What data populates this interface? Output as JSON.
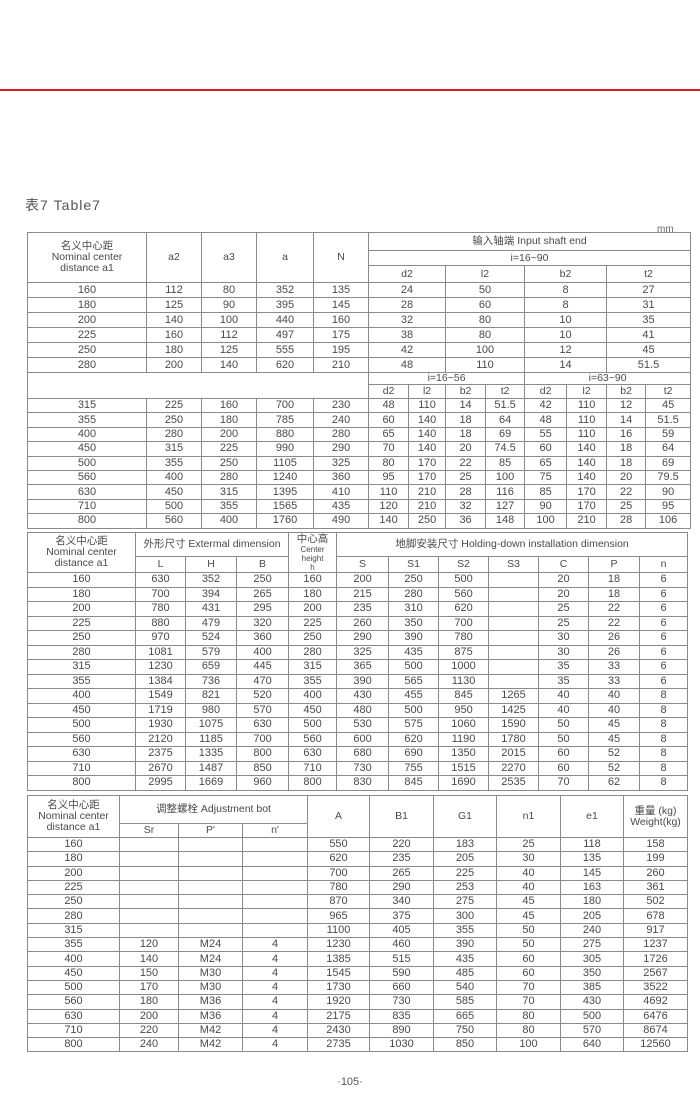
{
  "title": "表7  Table7",
  "unit": "mm",
  "page_number": "·105·",
  "accent_color": "#d8201e",
  "table1": {
    "header": {
      "a1": "名义中心距\nNominal center\ndistance a1",
      "a2": "a2",
      "a3": "a3",
      "a": "a",
      "N": "N",
      "input_shaft_end": "输入轴端  Input shaft end",
      "ratio_top": "i=16~90",
      "cols": [
        "d2",
        "l2",
        "b2",
        "t2"
      ],
      "ratio_low_1": "i=16~56",
      "ratio_low_2": "i=63~90",
      "cols_low": [
        "d2",
        "l2",
        "b2",
        "t2",
        "d2",
        "l2",
        "b2",
        "t2"
      ]
    },
    "rows_top": [
      [
        "160",
        "112",
        "80",
        "352",
        "135",
        "24",
        "50",
        "8",
        "27"
      ],
      [
        "180",
        "125",
        "90",
        "395",
        "145",
        "28",
        "60",
        "8",
        "31"
      ],
      [
        "200",
        "140",
        "100",
        "440",
        "160",
        "32",
        "80",
        "10",
        "35"
      ],
      [
        "225",
        "160",
        "112",
        "497",
        "175",
        "38",
        "80",
        "10",
        "41"
      ],
      [
        "250",
        "180",
        "125",
        "555",
        "195",
        "42",
        "100",
        "12",
        "45"
      ],
      [
        "280",
        "200",
        "140",
        "620",
        "210",
        "48",
        "110",
        "14",
        "51.5"
      ]
    ],
    "rows_low": [
      [
        "315",
        "225",
        "160",
        "700",
        "230",
        "48",
        "110",
        "14",
        "51.5",
        "42",
        "110",
        "12",
        "45"
      ],
      [
        "355",
        "250",
        "180",
        "785",
        "240",
        "60",
        "140",
        "18",
        "64",
        "48",
        "110",
        "14",
        "51.5"
      ],
      [
        "400",
        "280",
        "200",
        "880",
        "280",
        "65",
        "140",
        "18",
        "69",
        "55",
        "110",
        "16",
        "59"
      ],
      [
        "450",
        "315",
        "225",
        "990",
        "290",
        "70",
        "140",
        "20",
        "74.5",
        "60",
        "140",
        "18",
        "64"
      ],
      [
        "500",
        "355",
        "250",
        "1105",
        "325",
        "80",
        "170",
        "22",
        "85",
        "65",
        "140",
        "18",
        "69"
      ],
      [
        "560",
        "400",
        "280",
        "1240",
        "360",
        "95",
        "170",
        "25",
        "100",
        "75",
        "140",
        "20",
        "79.5"
      ],
      [
        "630",
        "450",
        "315",
        "1395",
        "410",
        "110",
        "210",
        "28",
        "116",
        "85",
        "170",
        "22",
        "90"
      ],
      [
        "710",
        "500",
        "355",
        "1565",
        "435",
        "120",
        "210",
        "32",
        "127",
        "90",
        "170",
        "25",
        "95"
      ],
      [
        "800",
        "560",
        "400",
        "1760",
        "490",
        "140",
        "250",
        "36",
        "148",
        "100",
        "210",
        "28",
        "106"
      ]
    ]
  },
  "table2": {
    "header": {
      "a1": "名义中心距\nNominal center\ndistance a1",
      "external": "外形尺寸 Extermal dimension",
      "center_height": "中心高",
      "center_height_en": "Center height\nh",
      "holding": "地脚安装尺寸  Holding-down installation dimension",
      "cols": [
        "L",
        "H",
        "B",
        "S",
        "S1",
        "S2",
        "S3",
        "C",
        "P",
        "n"
      ]
    },
    "rows": [
      [
        "160",
        "630",
        "352",
        "250",
        "160",
        "200",
        "250",
        "500",
        "",
        "20",
        "18",
        "6"
      ],
      [
        "180",
        "700",
        "394",
        "265",
        "180",
        "215",
        "280",
        "560",
        "",
        "20",
        "18",
        "6"
      ],
      [
        "200",
        "780",
        "431",
        "295",
        "200",
        "235",
        "310",
        "620",
        "",
        "25",
        "22",
        "6"
      ],
      [
        "225",
        "880",
        "479",
        "320",
        "225",
        "260",
        "350",
        "700",
        "",
        "25",
        "22",
        "6"
      ],
      [
        "250",
        "970",
        "524",
        "360",
        "250",
        "290",
        "390",
        "780",
        "",
        "30",
        "26",
        "6"
      ],
      [
        "280",
        "1081",
        "579",
        "400",
        "280",
        "325",
        "435",
        "875",
        "",
        "30",
        "26",
        "6"
      ],
      [
        "315",
        "1230",
        "659",
        "445",
        "315",
        "365",
        "500",
        "1000",
        "",
        "35",
        "33",
        "6"
      ],
      [
        "355",
        "1384",
        "736",
        "470",
        "355",
        "390",
        "565",
        "1130",
        "",
        "35",
        "33",
        "6"
      ],
      [
        "400",
        "1549",
        "821",
        "520",
        "400",
        "430",
        "455",
        "845",
        "1265",
        "40",
        "40",
        "8"
      ],
      [
        "450",
        "1719",
        "980",
        "570",
        "450",
        "480",
        "500",
        "950",
        "1425",
        "40",
        "40",
        "8"
      ],
      [
        "500",
        "1930",
        "1075",
        "630",
        "500",
        "530",
        "575",
        "1060",
        "1590",
        "50",
        "45",
        "8"
      ],
      [
        "560",
        "2120",
        "1185",
        "700",
        "560",
        "600",
        "620",
        "1190",
        "1780",
        "50",
        "45",
        "8"
      ],
      [
        "630",
        "2375",
        "1335",
        "800",
        "630",
        "680",
        "690",
        "1350",
        "2015",
        "60",
        "52",
        "8"
      ],
      [
        "710",
        "2670",
        "1487",
        "850",
        "710",
        "730",
        "755",
        "1515",
        "2270",
        "60",
        "52",
        "8"
      ],
      [
        "800",
        "2995",
        "1669",
        "960",
        "800",
        "830",
        "845",
        "1690",
        "2535",
        "70",
        "62",
        "8"
      ]
    ]
  },
  "table3": {
    "header": {
      "a1": "名义中心距\nNominal center\ndistance a1",
      "adjustment": "调整螺栓  Adjustment bot",
      "sub": [
        "Sr",
        "P'",
        "n'"
      ],
      "A": "A",
      "B1": "B1",
      "G1": "G1",
      "n1": "n1",
      "e1": "e1",
      "weight": "重量 (kg)\nWeight(kg)"
    },
    "rows": [
      [
        "160",
        "",
        "",
        "",
        "550",
        "220",
        "183",
        "25",
        "118",
        "158"
      ],
      [
        "180",
        "",
        "",
        "",
        "620",
        "235",
        "205",
        "30",
        "135",
        "199"
      ],
      [
        "200",
        "",
        "",
        "",
        "700",
        "265",
        "225",
        "40",
        "145",
        "260"
      ],
      [
        "225",
        "",
        "",
        "",
        "780",
        "290",
        "253",
        "40",
        "163",
        "361"
      ],
      [
        "250",
        "",
        "",
        "",
        "870",
        "340",
        "275",
        "45",
        "180",
        "502"
      ],
      [
        "280",
        "",
        "",
        "",
        "965",
        "375",
        "300",
        "45",
        "205",
        "678"
      ],
      [
        "315",
        "",
        "",
        "",
        "1100",
        "405",
        "355",
        "50",
        "240",
        "917"
      ],
      [
        "355",
        "120",
        "M24",
        "4",
        "1230",
        "460",
        "390",
        "50",
        "275",
        "1237"
      ],
      [
        "400",
        "140",
        "M24",
        "4",
        "1385",
        "515",
        "435",
        "60",
        "305",
        "1726"
      ],
      [
        "450",
        "150",
        "M30",
        "4",
        "1545",
        "590",
        "485",
        "60",
        "350",
        "2567"
      ],
      [
        "500",
        "170",
        "M30",
        "4",
        "1730",
        "660",
        "540",
        "70",
        "385",
        "3522"
      ],
      [
        "560",
        "180",
        "M36",
        "4",
        "1920",
        "730",
        "585",
        "70",
        "430",
        "4692"
      ],
      [
        "630",
        "200",
        "M36",
        "4",
        "2175",
        "835",
        "665",
        "80",
        "500",
        "6476"
      ],
      [
        "710",
        "220",
        "M42",
        "4",
        "2430",
        "890",
        "750",
        "80",
        "570",
        "8674"
      ],
      [
        "800",
        "240",
        "M42",
        "4",
        "2735",
        "1030",
        "850",
        "100",
        "640",
        "12560"
      ]
    ]
  }
}
